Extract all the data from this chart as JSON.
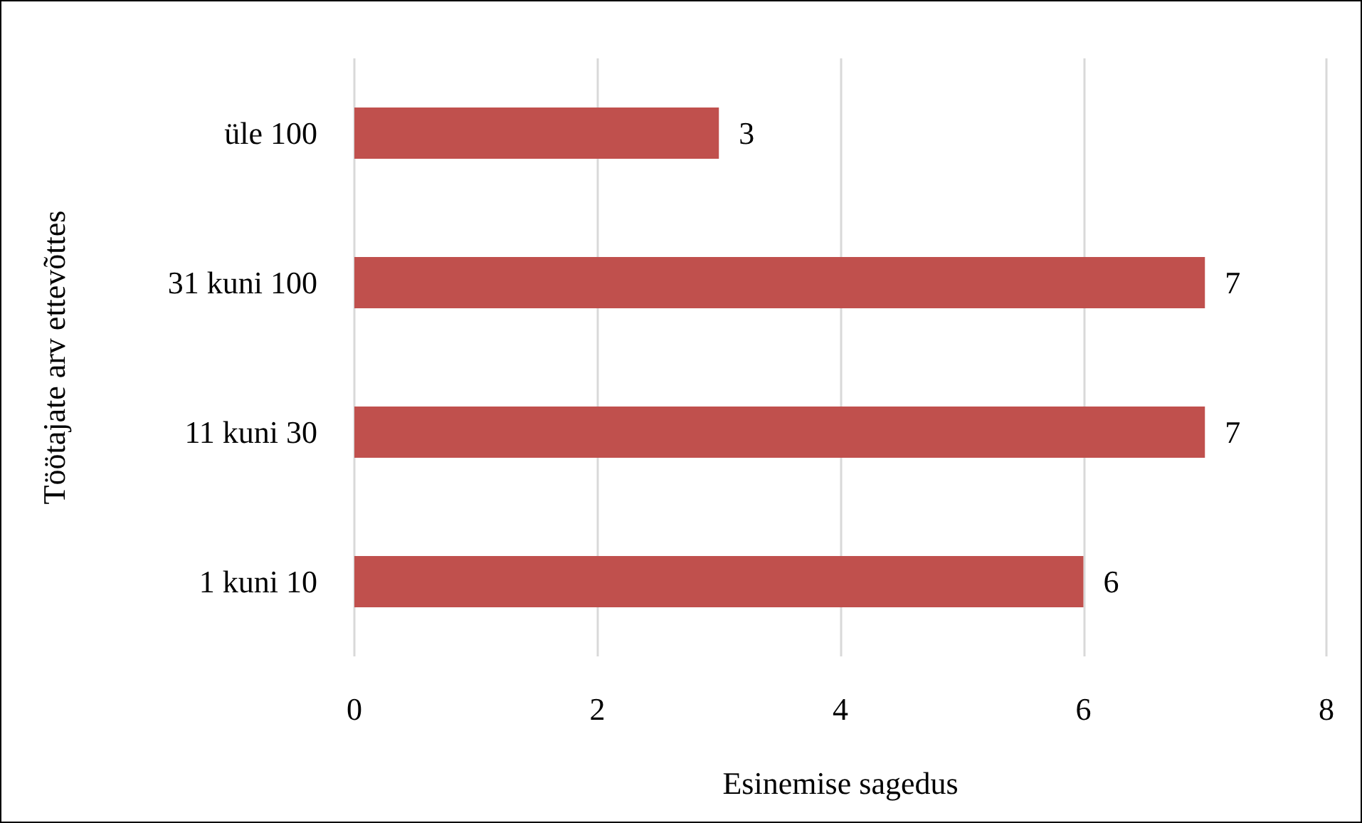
{
  "chart_data": {
    "type": "bar",
    "orientation": "horizontal",
    "xlabel": "Esinemise sagedus",
    "ylabel": "Töötajate arv ettevõttes",
    "categories": [
      "üle 100",
      "31 kuni 100",
      "11 kuni 30",
      "1 kuni 10"
    ],
    "values": [
      3,
      7,
      7,
      6
    ],
    "color": "#c0504d",
    "xlim": [
      0,
      8
    ],
    "xticks": [
      0,
      2,
      4,
      6,
      8
    ],
    "grid": "x",
    "data_labels": true
  }
}
